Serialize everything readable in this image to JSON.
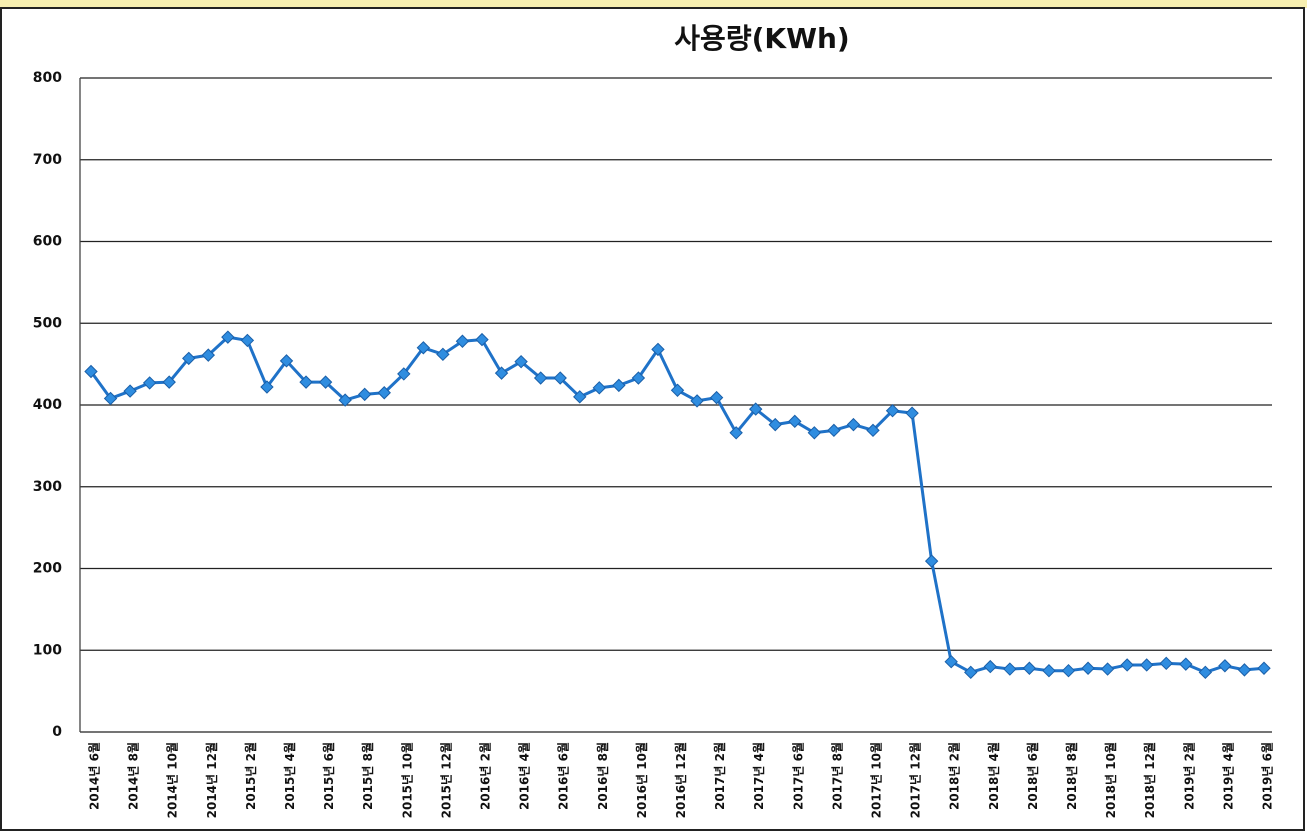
{
  "chart_data": {
    "type": "line",
    "title": "사용량(KWh)",
    "categories": [
      "2014년 6월",
      null,
      "2014년 8월",
      null,
      "2014년 10월",
      null,
      "2014년 12월",
      null,
      "2015년 2월",
      null,
      "2015년 4월",
      null,
      "2015년 6월",
      null,
      "2015년 8월",
      null,
      "2015년 10월",
      null,
      "2015년 12월",
      null,
      "2016년 2월",
      null,
      "2016년 4월",
      null,
      "2016년 6월",
      null,
      "2016년 8월",
      null,
      "2016년 10월",
      null,
      "2016년 12월",
      null,
      "2017년 2월",
      null,
      "2017년 4월",
      null,
      "2017년 6월",
      null,
      "2017년 8월",
      null,
      "2017년 10월",
      null,
      "2017년 12월",
      null,
      "2018년 2월",
      null,
      "2018년 4월",
      null,
      "2018년 6월",
      null,
      "2018년 8월",
      null,
      "2018년 10월",
      null,
      "2018년 12월",
      null,
      "2019년 2월",
      null,
      "2019년 4월",
      null,
      "2019년 6월"
    ],
    "values": [
      441,
      408,
      417,
      427,
      428,
      457,
      461,
      483,
      479,
      422,
      454,
      428,
      428,
      406,
      413,
      415,
      438,
      470,
      462,
      478,
      480,
      439,
      453,
      433,
      433,
      410,
      421,
      424,
      433,
      468,
      418,
      405,
      409,
      366,
      395,
      376,
      380,
      366,
      369,
      376,
      369,
      393,
      390,
      209,
      86,
      73,
      80,
      77,
      78,
      75,
      75,
      78,
      77,
      82,
      82,
      84,
      83,
      73,
      81,
      76,
      78
    ],
    "color": "#1f72c8",
    "ylim": [
      0,
      800
    ],
    "yticks": [
      0,
      100,
      200,
      300,
      400,
      500,
      600,
      700,
      800
    ],
    "grid": true
  }
}
